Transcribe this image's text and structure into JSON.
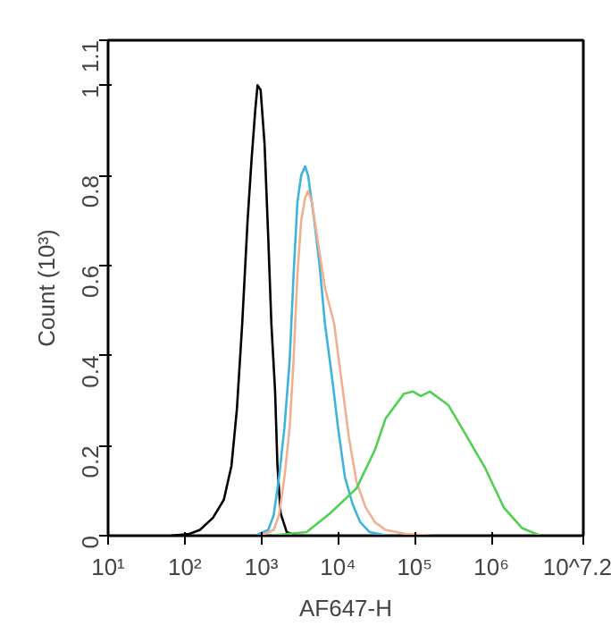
{
  "chart_data": {
    "type": "line",
    "xlabel": "AF647-H",
    "ylabel": "Count (10³)",
    "log": "x",
    "xlim": [
      10,
      15848932
    ],
    "ylim": [
      0,
      1.1
    ],
    "xticks": [
      {
        "value": 10,
        "label": "10¹"
      },
      {
        "value": 100,
        "label": "10²"
      },
      {
        "value": 1000,
        "label": "10³"
      },
      {
        "value": 10000,
        "label": "10⁴"
      },
      {
        "value": 100000,
        "label": "10⁵"
      },
      {
        "value": 1000000,
        "label": "10⁶"
      },
      {
        "value": 15848932,
        "label": "10^7.2"
      }
    ],
    "yticks": [
      0,
      0.2,
      0.4,
      0.6,
      0.8,
      1,
      1.1
    ],
    "grid": false,
    "marker": "none",
    "line_style": "solid",
    "series": [
      {
        "color": "#000000",
        "x": [
          66,
          115,
          158,
          234,
          324,
          407,
          479,
          562,
          661,
          741,
          832,
          891,
          977,
          1100,
          1230,
          1350,
          1510,
          1620,
          1780,
          2140,
          2820
        ],
        "values": [
          0,
          0.004,
          0.013,
          0.04,
          0.08,
          0.155,
          0.28,
          0.47,
          0.7,
          0.83,
          0.945,
          1.0,
          0.99,
          0.87,
          0.66,
          0.47,
          0.32,
          0.155,
          0.05,
          0.008,
          0
        ]
      },
      {
        "color": "#3cb4dc",
        "x": [
          832,
          1230,
          1450,
          1700,
          2000,
          2340,
          2630,
          2950,
          3310,
          3720,
          4070,
          4900,
          5750,
          6760,
          8510,
          10000,
          12300,
          15500,
          19500,
          25700,
          44700
        ],
        "values": [
          0,
          0.013,
          0.046,
          0.13,
          0.24,
          0.39,
          0.58,
          0.74,
          0.8,
          0.82,
          0.8,
          0.7,
          0.6,
          0.47,
          0.34,
          0.24,
          0.13,
          0.07,
          0.03,
          0.008,
          0
        ]
      },
      {
        "color": "#f0b090",
        "x": [
          977,
          1450,
          1700,
          2000,
          2340,
          2630,
          2950,
          3310,
          3720,
          4070,
          4570,
          5370,
          6760,
          8910,
          11200,
          13800,
          17400,
          22900,
          30200,
          41700,
          75900,
          174000
        ],
        "values": [
          0,
          0.013,
          0.046,
          0.13,
          0.24,
          0.39,
          0.58,
          0.7,
          0.75,
          0.765,
          0.74,
          0.66,
          0.55,
          0.47,
          0.34,
          0.22,
          0.12,
          0.063,
          0.03,
          0.013,
          0.004,
          0
        ]
      },
      {
        "color": "#50d050",
        "x": [
          1230,
          3890,
          7940,
          17400,
          30200,
          41700,
          72400,
          95500,
          120000,
          158000,
          275000,
          479000,
          832000,
          1450000,
          2510000,
          4370000
        ],
        "values": [
          0,
          0.008,
          0.05,
          0.105,
          0.19,
          0.26,
          0.315,
          0.32,
          0.31,
          0.32,
          0.29,
          0.22,
          0.15,
          0.063,
          0.017,
          0
        ]
      }
    ]
  }
}
